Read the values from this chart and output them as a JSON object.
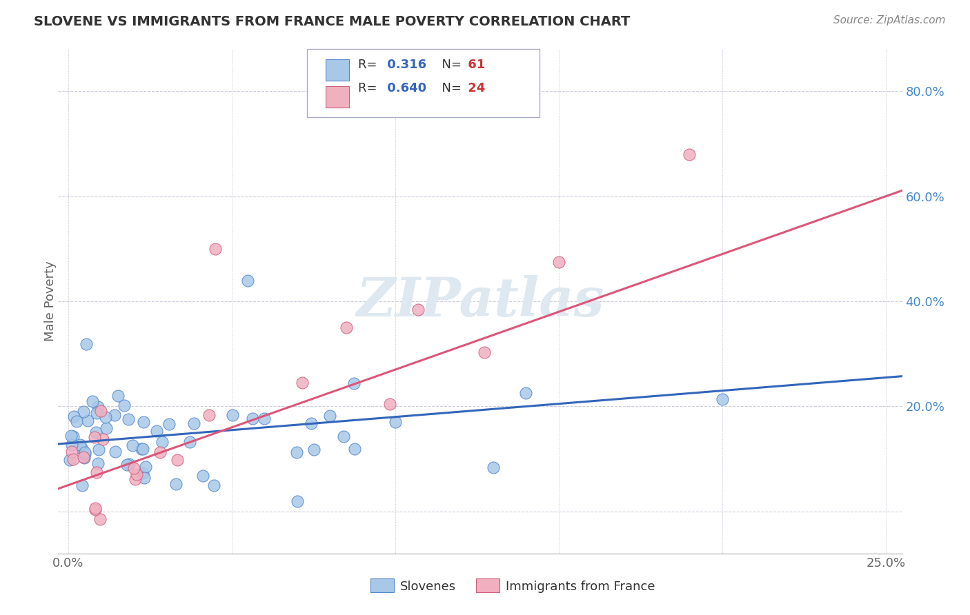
{
  "title": "SLOVENE VS IMMIGRANTS FROM FRANCE MALE POVERTY CORRELATION CHART",
  "source": "Source: ZipAtlas.com",
  "ylabel": "Male Poverty",
  "xlim": [
    -0.003,
    0.255
  ],
  "ylim": [
    -0.08,
    0.88
  ],
  "xticks": [
    0.0,
    0.05,
    0.1,
    0.15,
    0.2,
    0.25
  ],
  "xticklabels": [
    "0.0%",
    "",
    "",
    "",
    "",
    "25.0%"
  ],
  "yticks": [
    0.0,
    0.2,
    0.4,
    0.6,
    0.8
  ],
  "yticklabels": [
    "",
    "20.0%",
    "40.0%",
    "60.0%",
    "80.0%"
  ],
  "blue_color": "#a8c8e8",
  "blue_edge_color": "#5588cc",
  "pink_color": "#f0b0c0",
  "pink_edge_color": "#d06080",
  "blue_line_color": "#3366bb",
  "pink_line_color": "#dd5577",
  "ytick_color": "#4488cc",
  "xtick_color": "#666666",
  "grid_color": "#ccccdd",
  "title_color": "#333333",
  "source_color": "#888888",
  "watermark_color": "#dde8f0",
  "legend_r_color": "#3366bb",
  "legend_n_color": "#cc3333",
  "legend_text_color": "#333333"
}
